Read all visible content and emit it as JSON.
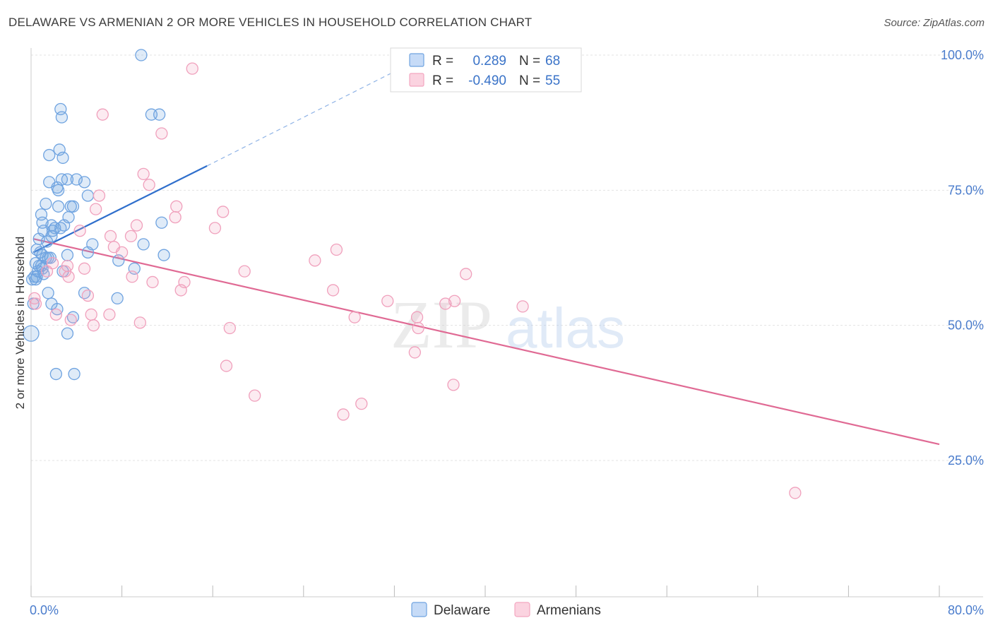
{
  "header": {
    "title": "DELAWARE VS ARMENIAN 2 OR MORE VEHICLES IN HOUSEHOLD CORRELATION CHART",
    "source": "Source: ZipAtlas.com"
  },
  "watermark": {
    "zip": "ZIP",
    "atlas": "atlas"
  },
  "colors": {
    "blue": "#6fa3e0",
    "blue_line": "#2f6fcc",
    "pink": "#f3a6c0",
    "pink_line": "#e06a94",
    "axis_text": "#4a7ccc",
    "grid": "#e6e6e6"
  },
  "stats_box": {
    "rows": [
      {
        "r_label": "R =",
        "r_value": "0.289",
        "n_label": "N =",
        "n_value": "68"
      },
      {
        "r_label": "R =",
        "r_value": "-0.490",
        "n_label": "N =",
        "n_value": "55"
      }
    ]
  },
  "legend": {
    "items": [
      "Delaware",
      "Armenians"
    ]
  },
  "chart_data": {
    "type": "scatter",
    "xlabel": "",
    "ylabel": "2 or more Vehicles in Household",
    "xlim": [
      0,
      80
    ],
    "ylim": [
      0,
      105
    ],
    "x_tick_labels": [
      "0.0%",
      "80.0%"
    ],
    "y_ticks": [
      25,
      50,
      75,
      100
    ],
    "y_tick_labels": [
      "25.0%",
      "50.0%",
      "75.0%",
      "100.0%"
    ],
    "grid": true,
    "series": [
      {
        "name": "Delaware",
        "color": "#6fa3e0",
        "trend": {
          "x0": 0.2,
          "y0": 63.5,
          "x1": 15.5,
          "y1": 79.5,
          "dash_to_x": 33,
          "dash_to_y": 98
        },
        "points": [
          [
            9.7,
            100
          ],
          [
            2.6,
            90
          ],
          [
            2.7,
            88.5
          ],
          [
            10.6,
            89
          ],
          [
            11.3,
            89
          ],
          [
            1.6,
            81.5
          ],
          [
            2.5,
            82.5
          ],
          [
            2.8,
            81
          ],
          [
            1.6,
            76.5
          ],
          [
            2.7,
            77
          ],
          [
            3.2,
            77
          ],
          [
            4.0,
            77
          ],
          [
            4.7,
            76.5
          ],
          [
            2.3,
            75.5
          ],
          [
            2.4,
            75
          ],
          [
            5.0,
            74
          ],
          [
            1.3,
            72.5
          ],
          [
            2.4,
            72
          ],
          [
            3.5,
            72
          ],
          [
            3.7,
            72
          ],
          [
            0.9,
            70.5
          ],
          [
            3.3,
            70
          ],
          [
            1.0,
            69
          ],
          [
            1.8,
            68.5
          ],
          [
            2.9,
            68.5
          ],
          [
            11.5,
            69
          ],
          [
            1.1,
            67.5
          ],
          [
            1.9,
            67.5
          ],
          [
            2.1,
            68
          ],
          [
            2.6,
            68
          ],
          [
            1.4,
            65.5
          ],
          [
            0.7,
            66
          ],
          [
            1.8,
            66.5
          ],
          [
            5.4,
            65
          ],
          [
            9.9,
            65
          ],
          [
            0.5,
            64
          ],
          [
            0.8,
            63.5
          ],
          [
            1.0,
            63
          ],
          [
            1.3,
            62.5
          ],
          [
            1.5,
            62.5
          ],
          [
            1.7,
            62.5
          ],
          [
            3.2,
            63
          ],
          [
            5.0,
            63.5
          ],
          [
            11.7,
            63
          ],
          [
            7.7,
            62
          ],
          [
            0.4,
            61.5
          ],
          [
            0.7,
            61
          ],
          [
            0.9,
            61
          ],
          [
            1.0,
            60.5
          ],
          [
            0.6,
            60
          ],
          [
            0.3,
            59
          ],
          [
            0.5,
            59
          ],
          [
            1.1,
            59.5
          ],
          [
            2.8,
            60
          ],
          [
            9.1,
            60.5
          ],
          [
            0.1,
            58.5
          ],
          [
            0.4,
            58.5
          ],
          [
            1.5,
            56
          ],
          [
            4.7,
            56
          ],
          [
            7.6,
            55
          ],
          [
            0.2,
            54
          ],
          [
            1.8,
            54
          ],
          [
            2.3,
            53
          ],
          [
            3.7,
            51.5
          ],
          [
            3.2,
            48.5
          ],
          [
            0.0,
            48.5
          ],
          [
            2.2,
            41
          ],
          [
            3.8,
            41
          ]
        ]
      },
      {
        "name": "Armenians",
        "color": "#f3a6c0",
        "trend": {
          "x0": 0.2,
          "y0": 66,
          "x1": 80,
          "y1": 28
        },
        "points": [
          [
            14.2,
            97.5
          ],
          [
            6.3,
            89
          ],
          [
            11.5,
            85.5
          ],
          [
            9.9,
            78
          ],
          [
            10.4,
            76
          ],
          [
            6.0,
            74
          ],
          [
            12.8,
            72
          ],
          [
            16.9,
            71
          ],
          [
            5.7,
            71.5
          ],
          [
            12.7,
            70
          ],
          [
            9.3,
            68.5
          ],
          [
            16.2,
            68
          ],
          [
            4.3,
            67.5
          ],
          [
            7.0,
            66.5
          ],
          [
            8.8,
            66.5
          ],
          [
            7.3,
            64.5
          ],
          [
            8.0,
            63.5
          ],
          [
            26.9,
            64
          ],
          [
            25.0,
            62
          ],
          [
            3.2,
            61
          ],
          [
            1.9,
            61.5
          ],
          [
            4.7,
            60.5
          ],
          [
            1.4,
            60
          ],
          [
            3.0,
            60
          ],
          [
            18.8,
            60
          ],
          [
            38.3,
            59.5
          ],
          [
            3.3,
            59
          ],
          [
            8.9,
            59
          ],
          [
            10.7,
            58
          ],
          [
            13.5,
            58
          ],
          [
            13.2,
            56.5
          ],
          [
            26.6,
            56.5
          ],
          [
            5.0,
            55.5
          ],
          [
            0.3,
            55
          ],
          [
            31.4,
            54.5
          ],
          [
            37.3,
            54.5
          ],
          [
            0.4,
            54
          ],
          [
            36.5,
            54
          ],
          [
            43.3,
            53.5
          ],
          [
            5.3,
            52
          ],
          [
            6.9,
            52
          ],
          [
            2.2,
            52
          ],
          [
            28.5,
            51.5
          ],
          [
            34.0,
            51.5
          ],
          [
            3.5,
            51
          ],
          [
            9.6,
            50.5
          ],
          [
            5.5,
            50
          ],
          [
            17.5,
            49.5
          ],
          [
            34.1,
            49.5
          ],
          [
            33.8,
            45
          ],
          [
            17.2,
            42.5
          ],
          [
            37.2,
            39
          ],
          [
            19.7,
            37
          ],
          [
            29.1,
            35.5
          ],
          [
            27.5,
            33.5
          ],
          [
            67.3,
            19
          ]
        ]
      }
    ]
  }
}
